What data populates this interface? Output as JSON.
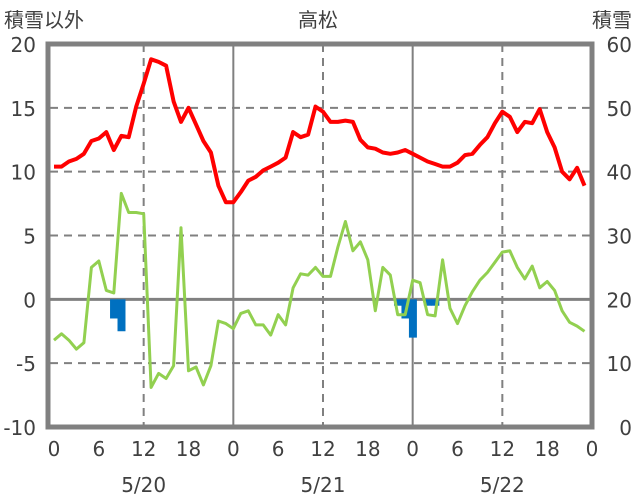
{
  "chart_data": {
    "type": "line",
    "title": "高松",
    "ylabel_left": "積雪以外",
    "ylabel_right": "積雪",
    "ylim_left": [
      -10,
      20
    ],
    "ylim_right": [
      0,
      60
    ],
    "yticks_left": [
      "-10",
      "-5",
      "0",
      "5",
      "10",
      "15",
      "20"
    ],
    "yticks_right": [
      "0",
      "10",
      "20",
      "30",
      "40",
      "50",
      "60"
    ],
    "xlim_hours": [
      0,
      72
    ],
    "xticks": [
      "0",
      "6",
      "12",
      "18",
      "0",
      "6",
      "12",
      "18",
      "0",
      "6",
      "12",
      "18",
      "0"
    ],
    "date_labels": [
      "5/20",
      "5/21",
      "5/22"
    ],
    "grid": true,
    "series": [
      {
        "name": "red",
        "color": "#ff0000",
        "kind": "line",
        "values": [
          10.4,
          10.4,
          10.8,
          11.0,
          11.4,
          12.4,
          12.6,
          13.1,
          11.7,
          12.8,
          12.7,
          15.1,
          16.9,
          18.8,
          18.6,
          18.3,
          15.5,
          13.9,
          15.0,
          13.7,
          12.4,
          11.5,
          8.9,
          7.6,
          7.6,
          8.4,
          9.3,
          9.6,
          10.1,
          10.4,
          10.7,
          11.1,
          13.1,
          12.7,
          12.9,
          15.1,
          14.7,
          13.9,
          13.9,
          14.0,
          13.9,
          12.5,
          11.9,
          11.8,
          11.5,
          11.4,
          11.5,
          11.7,
          11.4,
          11.1,
          10.8,
          10.6,
          10.4,
          10.4,
          10.7,
          11.3,
          11.4,
          12.1,
          12.7,
          13.8,
          14.7,
          14.3,
          13.1,
          13.9,
          13.8,
          14.9,
          13.1,
          11.9,
          10.0,
          9.4,
          10.3,
          8.9
        ]
      },
      {
        "name": "green",
        "color": "#92d050",
        "kind": "line",
        "values": [
          -3.2,
          -2.7,
          -3.2,
          -3.9,
          -3.4,
          2.5,
          3.0,
          0.7,
          0.5,
          8.3,
          6.8,
          6.8,
          6.7,
          -6.9,
          -5.8,
          -6.2,
          -5.2,
          5.6,
          -5.6,
          -5.3,
          -6.7,
          -5.2,
          -1.7,
          -1.9,
          -2.3,
          -1.1,
          -0.9,
          -2.0,
          -2.0,
          -2.8,
          -1.2,
          -2.0,
          0.9,
          2.0,
          1.9,
          2.5,
          1.8,
          1.8,
          4.1,
          6.1,
          3.8,
          4.5,
          3.1,
          -0.9,
          2.5,
          1.9,
          -1.2,
          -1.2,
          1.5,
          1.3,
          -1.2,
          -1.3,
          3.1,
          -0.7,
          -1.9,
          -0.5,
          0.6,
          1.5,
          2.1,
          2.9,
          3.7,
          3.8,
          2.5,
          1.6,
          2.6,
          0.9,
          1.4,
          0.7,
          -0.9,
          -1.8,
          -2.1,
          -2.5
        ]
      },
      {
        "name": "blue",
        "color": "#0070c0",
        "kind": "bar",
        "points": [
          [
            8,
            -1.5
          ],
          [
            9,
            -2.5
          ],
          [
            46,
            -0.5
          ],
          [
            47,
            -1.5
          ],
          [
            48,
            -3.0
          ],
          [
            50,
            -0.5
          ],
          [
            51,
            -0.5
          ]
        ]
      }
    ]
  }
}
